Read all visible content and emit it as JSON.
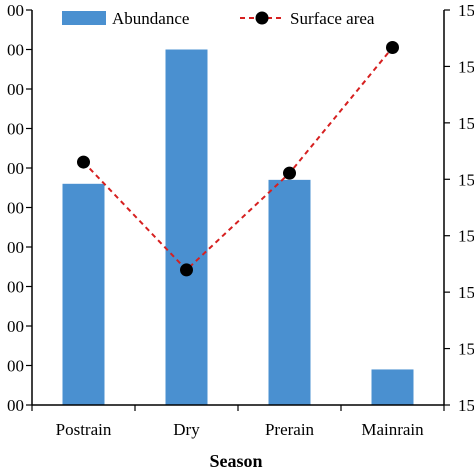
{
  "chart_data": {
    "type": "bar+line",
    "categories": [
      "Postrain",
      "Dry",
      "Prerain",
      "Mainrain"
    ],
    "xlabel": "Season",
    "series": [
      {
        "name": "Abundance",
        "type": "bar",
        "axis": "left",
        "color": "#4a90d0",
        "values": [
          5.6,
          9.0,
          5.7,
          0.9
        ]
      },
      {
        "name": "Surface area",
        "type": "line",
        "axis": "right",
        "color": "#d62020",
        "marker_color": "#000000",
        "line_style": "dashed",
        "values": [
          0.615,
          0.342,
          0.587,
          0.905
        ]
      }
    ],
    "left_axis": {
      "ylim": [
        0,
        10
      ],
      "ticks": [
        "00",
        "00",
        "00",
        "00",
        "00",
        "00",
        "00",
        "00",
        "00",
        "00",
        "00"
      ]
    },
    "right_axis": {
      "ylim": [
        0,
        1
      ],
      "ticks": [
        "15",
        "15",
        "15",
        "15",
        "15",
        "15",
        "15",
        "15"
      ]
    },
    "legend_position": "top",
    "grid": false
  }
}
